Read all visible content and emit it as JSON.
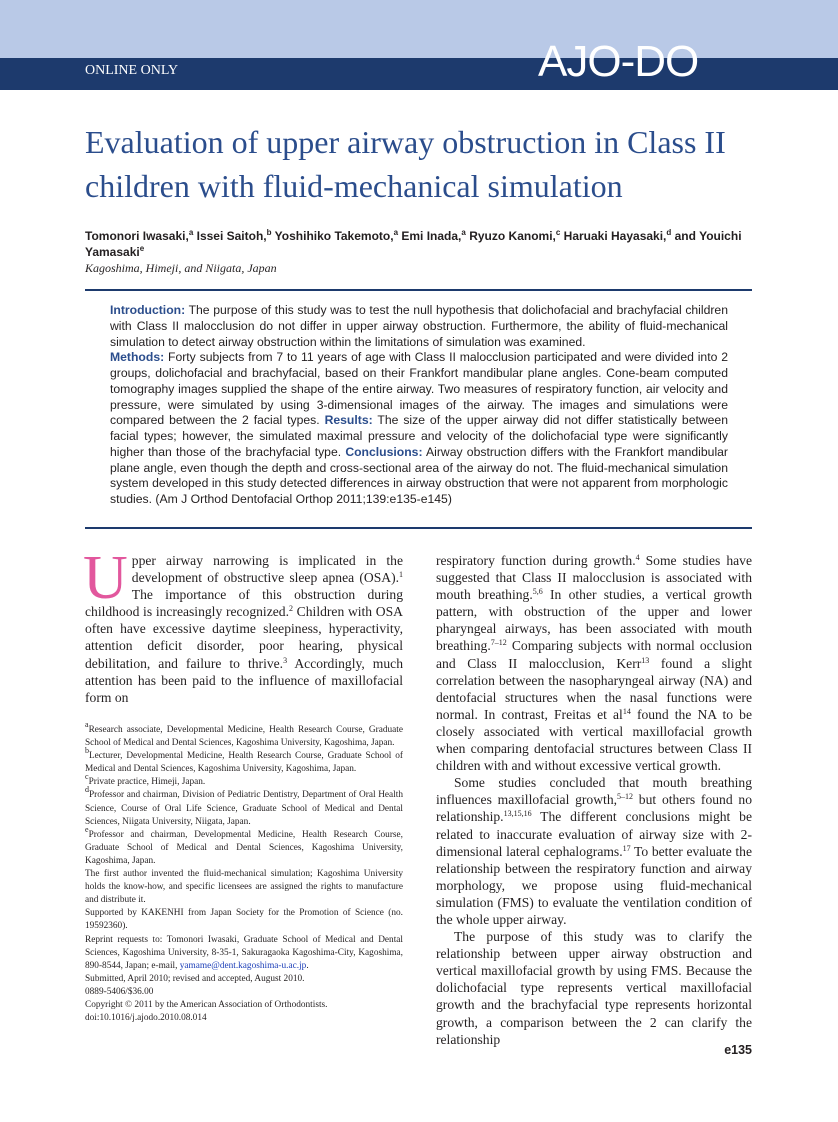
{
  "header": {
    "band_label": "ONLINE ONLY",
    "journal": "AJO-DO"
  },
  "title": "Evaluation of upper airway obstruction in Class II children with fluid-mechanical simulation",
  "authors": [
    {
      "name": "Tomonori Iwasaki,",
      "sup": "a"
    },
    {
      "name": "Issei Saitoh,",
      "sup": "b"
    },
    {
      "name": "Yoshihiko Takemoto,",
      "sup": "a"
    },
    {
      "name": "Emi Inada,",
      "sup": "a"
    },
    {
      "name": "Ryuzo Kanomi,",
      "sup": "c"
    },
    {
      "name": "Haruaki Hayasaki,",
      "sup": "d"
    },
    {
      "name": "and Youichi Yamasaki",
      "sup": "e"
    }
  ],
  "location": "Kagoshima, Himeji, and Niigata, Japan",
  "abstract": [
    [
      {
        "label": "Introduction:"
      },
      " The purpose of this study was to test the null hypothesis that dolichofacial and brachyfacial children with Class II malocclusion do not differ in upper airway obstruction. Furthermore, the ability of fluid-mechanical simulation to detect airway obstruction within the limitations of simulation was examined."
    ],
    [
      {
        "label": "Methods:"
      },
      " Forty subjects from 7 to 11 years of age with Class II malocclusion participated and were divided into 2 groups, dolichofacial and brachyfacial, based on their Frankfort mandibular plane angles. Cone-beam computed tomography images supplied the shape of the entire airway. Two measures of respiratory function, air velocity and pressure, were simulated by using 3-dimensional images of the airway. The images and simulations were compared between the 2 facial types. ",
      {
        "label": "Results:"
      },
      " The size of the upper airway did not differ statistically between facial types; however, the simulated maximal pressure and velocity of the dolichofacial type were significantly higher than those of the brachyfacial type. ",
      {
        "label": "Conclusions:"
      },
      " Airway obstruction differs with the Frankfort mandibular plane angle, even though the depth and cross-sectional area of the airway do not. The fluid-mechanical simulation system developed in this study detected differences in airway obstruction that were not apparent from morphologic studies. (Am J Orthod Dentofacial Orthop 2011;139:e135-e145)"
    ]
  ],
  "body": {
    "drop_cap": "U",
    "left": [
      [
        "pper airway narrowing is implicated in the development of obstructive sleep apnea (OSA).",
        {
          "sup": "1"
        },
        " The importance of this obstruction during childhood is increasingly recognized.",
        {
          "sup": "2"
        },
        " Children with OSA often have excessive daytime sleepiness, hyperactivity, attention deficit disorder, poor hearing, physical debilitation, and failure to thrive.",
        {
          "sup": "3"
        },
        " Accordingly, much attention has been paid to the influence of maxillofacial form on"
      ]
    ],
    "right": [
      [
        "respiratory function during growth.",
        {
          "sup": "4"
        },
        " Some studies have suggested that Class II malocclusion is associated with mouth breathing.",
        {
          "sup": "5,6"
        },
        " In other studies, a vertical growth pattern, with obstruction of the upper and lower pharyngeal airways, has been associated with mouth breathing.",
        {
          "sup": "7–12"
        },
        " Comparing subjects with normal occlusion and Class II malocclusion, Kerr",
        {
          "sup": "13"
        },
        " found a slight correlation between the nasopharyngeal airway (NA) and dentofacial structures when the nasal functions were normal. In contrast, Freitas et al",
        {
          "sup": "14"
        },
        " found the NA to be closely associated with vertical maxillofacial growth when comparing dentofacial structures between Class II children with and without excessive vertical growth."
      ],
      [
        "Some studies concluded that mouth breathing influences maxillofacial growth,",
        {
          "sup": "5–12"
        },
        " but others found no relationship.",
        {
          "sup": "13,15,16"
        },
        " The different conclusions might be related to inaccurate evaluation of airway size with 2-dimensional lateral cephalograms.",
        {
          "sup": "17"
        },
        " To better evaluate the relationship between the respiratory function and airway morphology, we propose using fluid-mechanical simulation (FMS) to evaluate the ventilation condition of the whole upper airway."
      ],
      [
        "The purpose of this study was to clarify the relationship between upper airway obstruction and vertical maxillofacial growth by using FMS. Because the dolichofacial type represents vertical maxillofacial growth and the brachyfacial type represents horizontal growth, a comparison between the 2 can clarify the relationship"
      ]
    ]
  },
  "footnotes": [
    [
      {
        "sup": "a"
      },
      "Research associate, Developmental Medicine, Health Research Course, Graduate School of Medical and Dental Sciences, Kagoshima University, Kagoshima, Japan."
    ],
    [
      {
        "sup": "b"
      },
      "Lecturer, Developmental Medicine, Health Research Course, Graduate School of Medical and Dental Sciences, Kagoshima University, Kagoshima, Japan."
    ],
    [
      {
        "sup": "c"
      },
      "Private practice, Himeji, Japan."
    ],
    [
      {
        "sup": "d"
      },
      "Professor and chairman, Division of Pediatric Dentistry, Department of Oral Health Science, Course of Oral Life Science, Graduate School of Medical and Dental Sciences, Niigata University, Niigata, Japan."
    ],
    [
      {
        "sup": "e"
      },
      "Professor and chairman, Developmental Medicine, Health Research Course, Graduate School of Medical and Dental Sciences, Kagoshima University, Kagoshima, Japan."
    ],
    [
      "The first author invented the fluid-mechanical simulation; Kagoshima University holds the know-how, and specific licensees are assigned the rights to manufacture and distribute it."
    ],
    [
      "Supported by KAKENHI from Japan Society for the Promotion of Science (no. 19592360)."
    ],
    [
      "Reprint requests to: Tomonori Iwasaki, Graduate School of Medical and Dental Sciences, Kagoshima University, 8-35-1, Sakuragaoka Kagoshima-City, Kagoshima, 890-8544, Japan; e-mail, ",
      {
        "link": "yamame@dent.kagoshima-u.ac.jp"
      },
      "."
    ],
    [
      "Submitted, April 2010; revised and accepted, August 2010."
    ],
    [
      "0889-5406/$36.00"
    ],
    [
      "Copyright © 2011 by the American Association of Orthodontists."
    ],
    [
      "doi:10.1016/j.ajodo.2010.08.014"
    ]
  ],
  "page_number": "e135"
}
